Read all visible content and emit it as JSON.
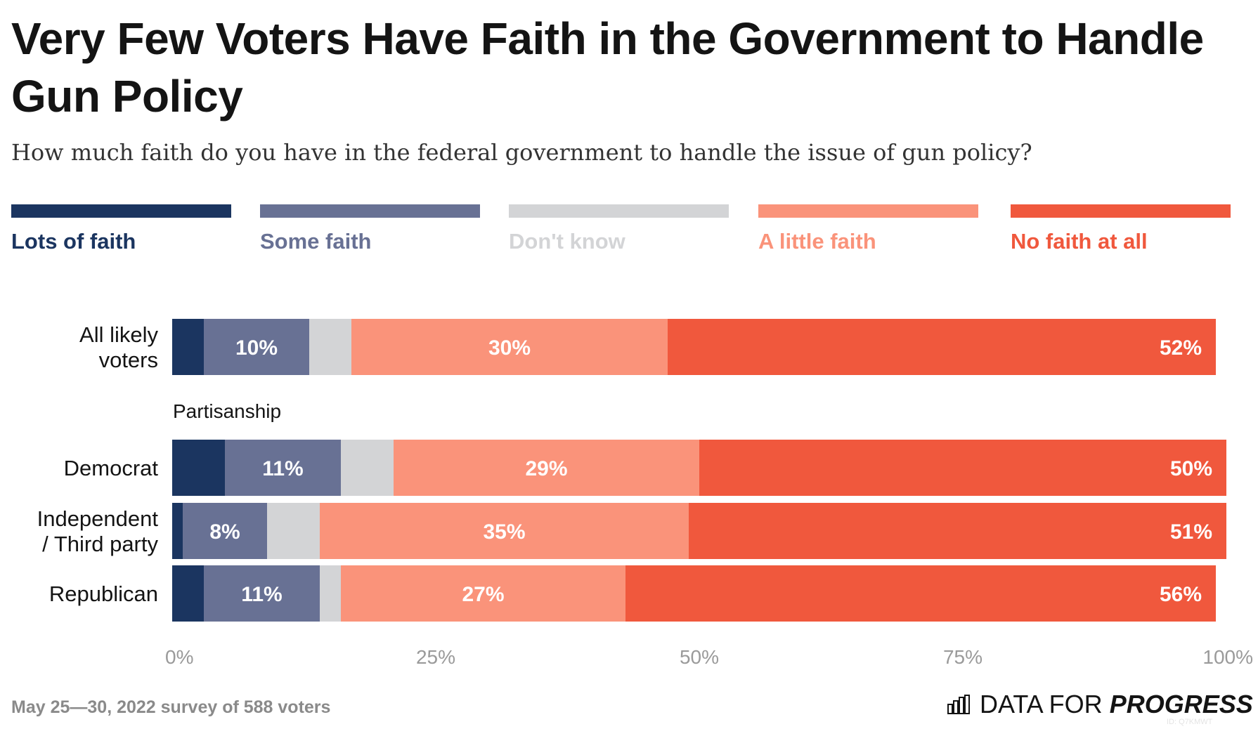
{
  "title": "Very Few Voters Have Faith in the Government to Handle Gun Policy",
  "subtitle": "How much faith do you have in the federal government to handle the issue of gun policy?",
  "footer": {
    "note": "May 25—30, 2022 survey of 588 voters",
    "brand_regular": "DATA FOR",
    "brand_bold": "PROGRESS",
    "brand_icon": "bar-chart-icon",
    "id": "ID: Q7KMWT"
  },
  "colors": {
    "lots": "#1b3560",
    "some": "#687194",
    "dont_know": "#d3d4d6",
    "little": "#fa937a",
    "none": "#f0583d"
  },
  "chart_data": {
    "type": "bar",
    "orientation": "horizontal",
    "stacked": true,
    "legend_position": "top",
    "categories": [
      "All likely voters",
      "Democrat",
      "Independent / Third party",
      "Republican"
    ],
    "group_labels": [
      {
        "label": "Partisanship",
        "before_category": "Democrat"
      }
    ],
    "series": [
      {
        "name": "Lots of faith",
        "color": "#1b3560",
        "values": [
          3,
          5,
          1,
          3
        ],
        "labels": [
          "",
          "",
          "",
          ""
        ]
      },
      {
        "name": "Some faith",
        "color": "#687194",
        "values": [
          10,
          11,
          8,
          11
        ],
        "labels": [
          "10%",
          "11%",
          "8%",
          "11%"
        ]
      },
      {
        "name": "Don't know",
        "color": "#d3d4d6",
        "values": [
          4,
          5,
          5,
          2
        ],
        "labels": [
          "",
          "",
          "",
          ""
        ]
      },
      {
        "name": "A little faith",
        "color": "#fa937a",
        "values": [
          30,
          29,
          35,
          27
        ],
        "labels": [
          "30%",
          "29%",
          "35%",
          "27%"
        ]
      },
      {
        "name": "No faith at all",
        "color": "#f0583d",
        "values": [
          52,
          50,
          51,
          56
        ],
        "labels": [
          "52%",
          "50%",
          "51%",
          "56%"
        ]
      }
    ],
    "x_ticks": [
      "0%",
      "25%",
      "50%",
      "75%",
      "100%"
    ],
    "xlim": [
      0,
      100
    ],
    "grid": false
  }
}
